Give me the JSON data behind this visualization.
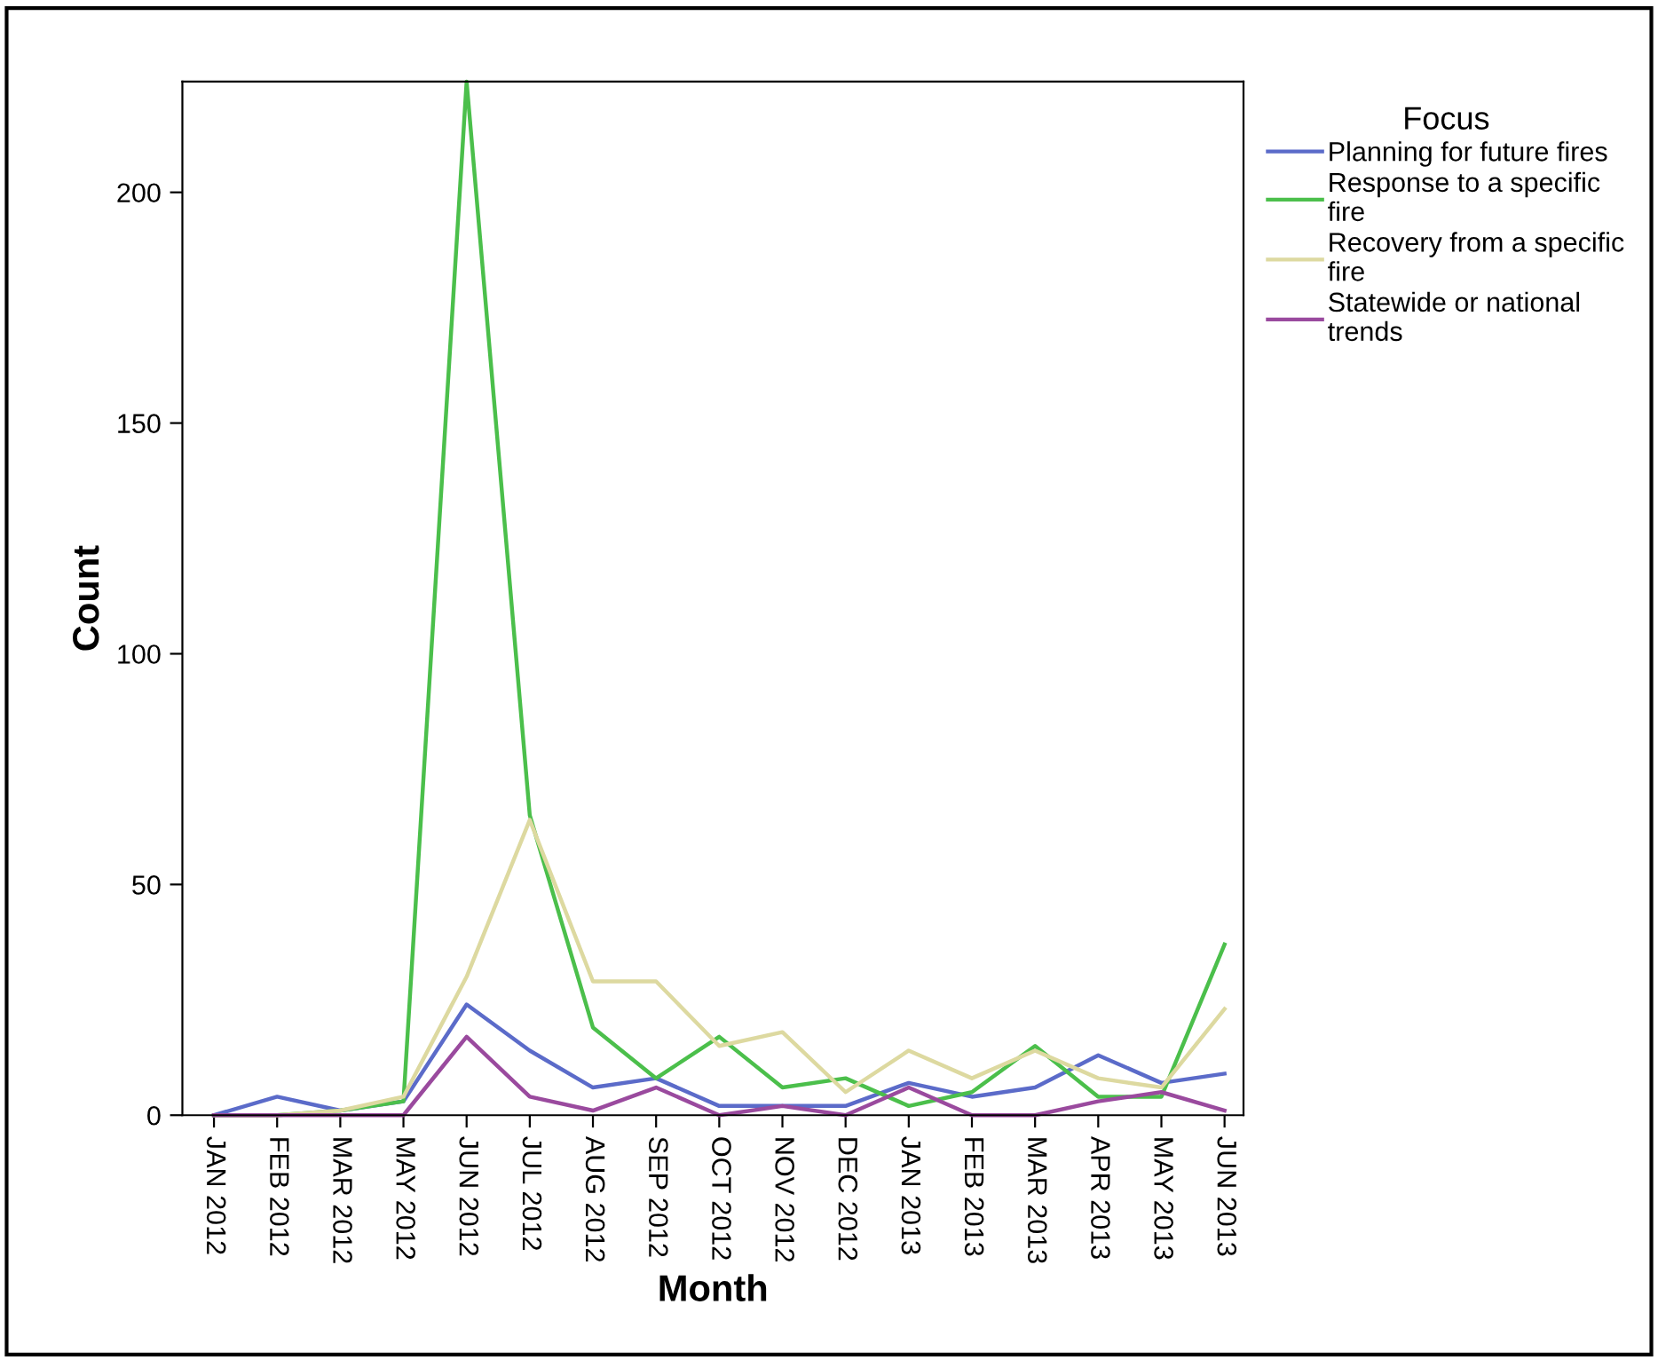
{
  "chart_data": {
    "type": "line",
    "xlabel": "Month",
    "ylabel": "Count",
    "legend_title": "Focus",
    "legend": "top right",
    "grid": false,
    "marker": "none",
    "line_style": "solid",
    "categories": [
      "JAN 2012",
      "FEB 2012",
      "MAR 2012",
      "MAY 2012",
      "JUN 2012",
      "JUL 2012",
      "AUG 2012",
      "SEP 2012",
      "OCT 2012",
      "NOV 2012",
      "DEC 2012",
      "JAN 2013",
      "FEB 2013",
      "MAR 2013",
      "APR 2013",
      "MAY 2013",
      "JUN 2013"
    ],
    "ylim": [
      0,
      224
    ],
    "yticks": [
      0,
      50,
      100,
      150,
      200
    ],
    "series": [
      {
        "name": "Planning for future fires",
        "color": "#5b6bc9",
        "values": [
          0,
          4,
          1,
          3,
          24,
          14,
          6,
          8,
          2,
          2,
          2,
          7,
          4,
          6,
          13,
          7,
          9
        ]
      },
      {
        "name": "Response to a specific\nfire",
        "color": "#4bbf4b",
        "values": [
          0,
          0,
          1,
          3,
          224,
          65,
          19,
          8,
          17,
          6,
          8,
          2,
          5,
          15,
          4,
          4,
          37
        ]
      },
      {
        "name": "Recovery from a specific\nfire",
        "color": "#ddd9a0",
        "values": [
          0,
          0,
          1,
          4,
          30,
          64,
          29,
          29,
          15,
          18,
          5,
          14,
          8,
          14,
          8,
          6,
          23
        ]
      },
      {
        "name": "Statewide or national\ntrends",
        "color": "#9a4a9e",
        "values": [
          0,
          0,
          0,
          0,
          17,
          4,
          1,
          6,
          0,
          2,
          0,
          6,
          0,
          0,
          3,
          5,
          1
        ]
      }
    ]
  }
}
